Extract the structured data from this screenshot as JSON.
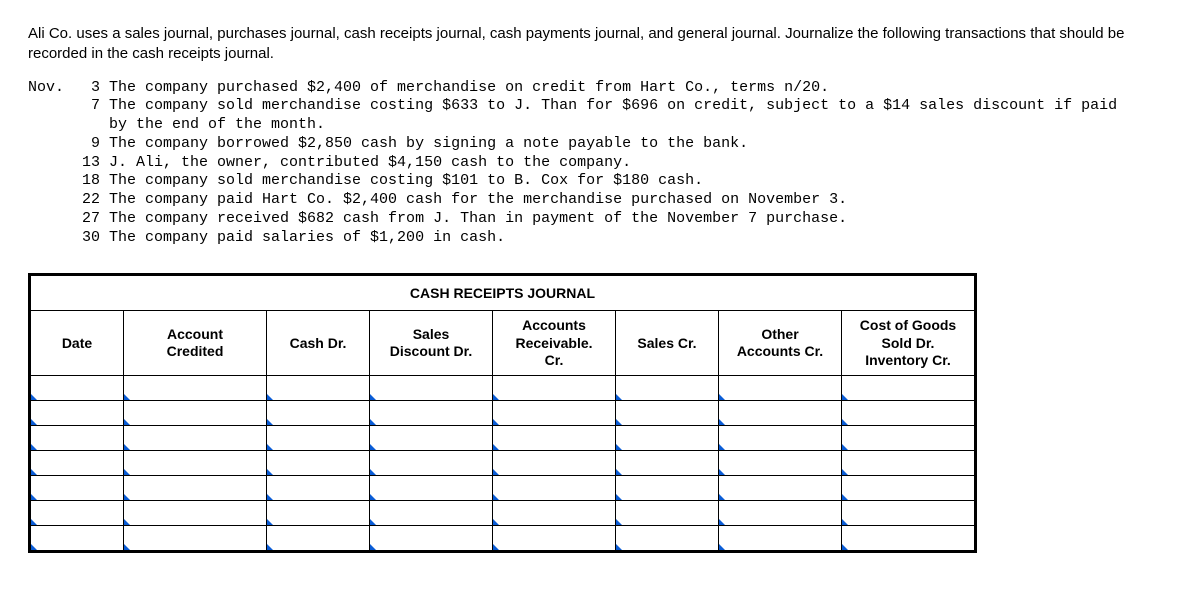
{
  "intro": "Ali Co. uses a sales journal, purchases journal, cash receipts journal, cash payments journal, and general journal. Journalize the following transactions that should be recorded in the cash receipts journal.",
  "month_label": "Nov.",
  "transactions": [
    {
      "day": "3",
      "text": "The company purchased $2,400 of merchandise on credit from Hart Co., terms n/20."
    },
    {
      "day": "7",
      "text": "The company sold merchandise costing $633 to J. Than for $696 on credit, subject to a $14 sales discount if paid"
    },
    {
      "day": "",
      "text": "by the end of the month."
    },
    {
      "day": "9",
      "text": "The company borrowed $2,850 cash by signing a note payable to the bank."
    },
    {
      "day": "13",
      "text": "J. Ali, the owner, contributed $4,150 cash to the company."
    },
    {
      "day": "18",
      "text": "The company sold merchandise costing $101 to B. Cox for $180 cash."
    },
    {
      "day": "22",
      "text": "The company paid Hart Co. $2,400 cash for the merchandise purchased on November 3."
    },
    {
      "day": "27",
      "text": "The company received $682 cash from J. Than in payment of the November 7 purchase."
    },
    {
      "day": "30",
      "text": "The company paid salaries of $1,200 in cash."
    }
  ],
  "journal": {
    "title": "CASH RECEIPTS JOURNAL",
    "columns": [
      "Date",
      "Account Credited",
      "Cash Dr.",
      "Sales Discount Dr.",
      "Accounts Receivable. Cr.",
      "Sales Cr.",
      "Other Accounts Cr.",
      "Cost of Goods Sold Dr. Inventory Cr."
    ],
    "blank_rows": 7,
    "marker_color": "#0a5cd6"
  }
}
